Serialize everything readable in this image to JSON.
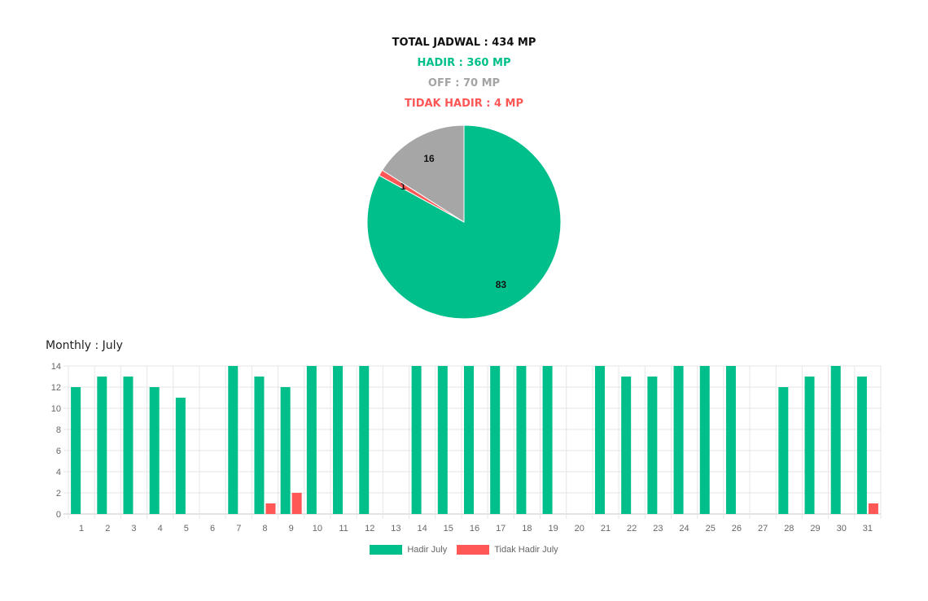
{
  "summary": {
    "total": "TOTAL JADWAL : 434 MP",
    "hadir": "HADIR : 360 MP",
    "off": "OFF : 70 MP",
    "tidak_hadir": "TIDAK HADIR : 4 MP"
  },
  "monthly_title": "Monthly : July",
  "colors": {
    "hadir": "#00bf8a",
    "off": "#a6a6a6",
    "tidak_hadir": "#ff5656"
  },
  "chart_data": [
    {
      "type": "pie",
      "slices": [
        {
          "value": 83,
          "label": "83",
          "color": "#00bf8a"
        },
        {
          "value": 1,
          "label": "1",
          "color": "#ff5656"
        },
        {
          "value": 16,
          "label": "16",
          "color": "#a6a6a6"
        }
      ]
    },
    {
      "type": "bar",
      "categories": [
        "1",
        "2",
        "3",
        "4",
        "5",
        "6",
        "7",
        "8",
        "9",
        "10",
        "11",
        "12",
        "13",
        "14",
        "15",
        "16",
        "17",
        "18",
        "19",
        "20",
        "21",
        "22",
        "23",
        "24",
        "25",
        "26",
        "27",
        "28",
        "29",
        "30",
        "31"
      ],
      "series": [
        {
          "name": "Hadir July",
          "color": "#00bf8a",
          "values": [
            12,
            13,
            13,
            12,
            11,
            0,
            14,
            13,
            12,
            14,
            14,
            14,
            0,
            14,
            14,
            14,
            14,
            14,
            14,
            0,
            14,
            13,
            13,
            14,
            14,
            14,
            0,
            12,
            13,
            14,
            13
          ]
        },
        {
          "name": "Tidak Hadir July",
          "color": "#ff5656",
          "values": [
            0,
            0,
            0,
            0,
            0,
            0,
            0,
            1,
            2,
            0,
            0,
            0,
            0,
            0,
            0,
            0,
            0,
            0,
            0,
            0,
            0,
            0,
            0,
            0,
            0,
            0,
            0,
            0,
            0,
            0,
            1
          ]
        }
      ],
      "ylim": [
        0,
        14
      ],
      "yticks": [
        0,
        2,
        4,
        6,
        8,
        10,
        12,
        14
      ],
      "grid": true,
      "legend": "bottom"
    }
  ]
}
